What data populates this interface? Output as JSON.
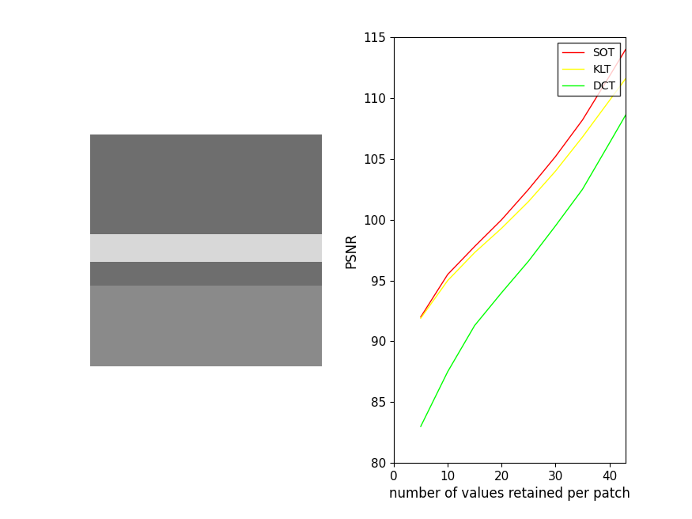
{
  "chart_data": {
    "type": "line",
    "x_label": "number of values retained per patch",
    "y_label": "PSNR",
    "x": [
      5,
      10,
      15,
      20,
      25,
      30,
      35,
      40,
      43
    ],
    "series": [
      {
        "name": "SOT",
        "color": "#ff0000",
        "values": [
          92.0,
          95.5,
          97.8,
          100.0,
          102.5,
          105.2,
          108.2,
          111.8,
          114.0
        ]
      },
      {
        "name": "KLT",
        "color": "#ffff00",
        "values": [
          91.9,
          95.0,
          97.3,
          99.3,
          101.5,
          104.0,
          106.8,
          109.8,
          111.6
        ]
      },
      {
        "name": "DCT",
        "color": "#00ff00",
        "values": [
          83.0,
          87.5,
          91.3,
          94.0,
          96.6,
          99.5,
          102.5,
          106.3,
          108.6
        ]
      }
    ],
    "xlim": [
      0,
      43
    ],
    "ylim": [
      80,
      115
    ],
    "xticks": [
      0,
      10,
      20,
      30,
      40
    ],
    "yticks": [
      80,
      85,
      90,
      95,
      100,
      105,
      110,
      115
    ],
    "legend": "upper right",
    "grid": false
  }
}
